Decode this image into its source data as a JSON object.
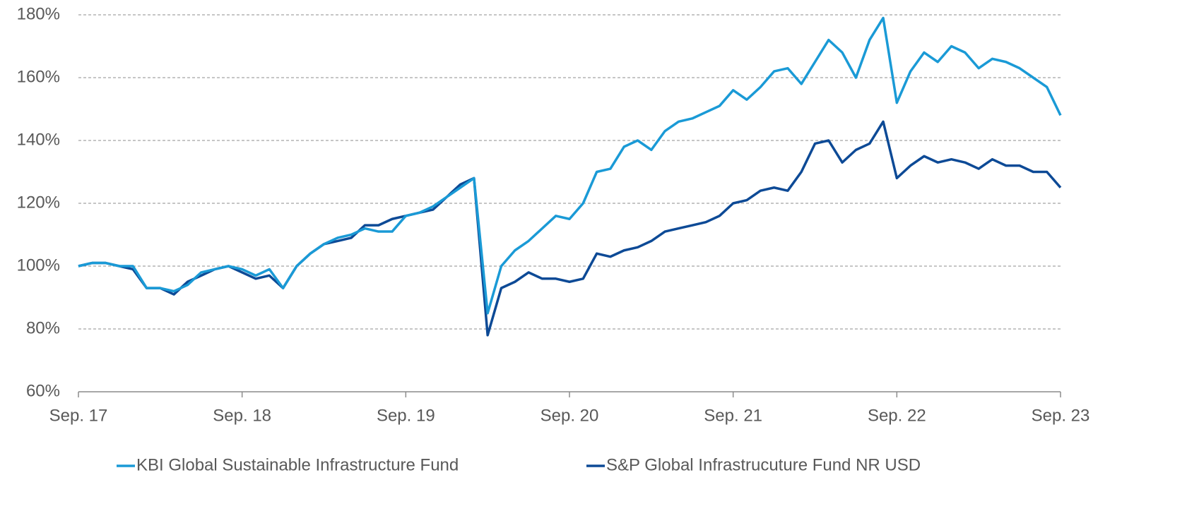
{
  "chart_data": {
    "type": "line",
    "categories": [
      "Sep. 17",
      null,
      null,
      null,
      null,
      null,
      null,
      null,
      null,
      null,
      null,
      null,
      "Sep. 18",
      null,
      null,
      null,
      null,
      null,
      null,
      null,
      null,
      null,
      null,
      null,
      "Sep. 19",
      null,
      null,
      null,
      null,
      null,
      null,
      null,
      null,
      null,
      null,
      null,
      "Sep. 20",
      null,
      null,
      null,
      null,
      null,
      null,
      null,
      null,
      null,
      null,
      null,
      "Sep. 21",
      null,
      null,
      null,
      null,
      null,
      null,
      null,
      null,
      null,
      null,
      null,
      "Sep. 22",
      null,
      null,
      null,
      null,
      null,
      null,
      null,
      null,
      null,
      null,
      null,
      "Sep. 23"
    ],
    "series": [
      {
        "name": "KBI Global Sustainable Infrastructure Fund",
        "color": "#1a9ad6",
        "values": [
          100,
          101,
          101,
          100,
          100,
          93,
          93,
          92,
          94,
          98,
          99,
          100,
          99,
          97,
          99,
          93,
          100,
          104,
          107,
          109,
          110,
          112,
          111,
          111,
          116,
          117,
          119,
          122,
          125,
          128,
          85,
          100,
          105,
          108,
          112,
          116,
          115,
          120,
          130,
          131,
          138,
          140,
          137,
          143,
          146,
          147,
          149,
          151,
          156,
          153,
          157,
          162,
          163,
          158,
          165,
          172,
          168,
          160,
          172,
          179,
          152,
          162,
          168,
          165,
          170,
          168,
          163,
          166,
          165,
          163,
          160,
          157,
          148
        ]
      },
      {
        "name": "S&P Global Infrastrucuture Fund NR USD",
        "color": "#0d4a96",
        "values": [
          100,
          101,
          101,
          100,
          99,
          93,
          93,
          91,
          95,
          97,
          99,
          100,
          98,
          96,
          97,
          93,
          100,
          104,
          107,
          108,
          109,
          113,
          113,
          115,
          116,
          117,
          118,
          122,
          126,
          128,
          78,
          93,
          95,
          98,
          96,
          96,
          95,
          96,
          104,
          103,
          105,
          106,
          108,
          111,
          112,
          113,
          114,
          116,
          120,
          121,
          124,
          125,
          124,
          130,
          139,
          140,
          133,
          137,
          139,
          146,
          128,
          132,
          135,
          133,
          134,
          133,
          131,
          134,
          132,
          132,
          130,
          130,
          125
        ]
      }
    ],
    "ylim": [
      60,
      180
    ],
    "yticks": [
      {
        "value": 60,
        "label": "60%"
      },
      {
        "value": 80,
        "label": "80%"
      },
      {
        "value": 100,
        "label": "100%"
      },
      {
        "value": 120,
        "label": "120%"
      },
      {
        "value": 140,
        "label": "140%"
      },
      {
        "value": 160,
        "label": "160%"
      },
      {
        "value": 180,
        "label": "180%"
      }
    ],
    "grid": true,
    "legend": "bottom"
  }
}
